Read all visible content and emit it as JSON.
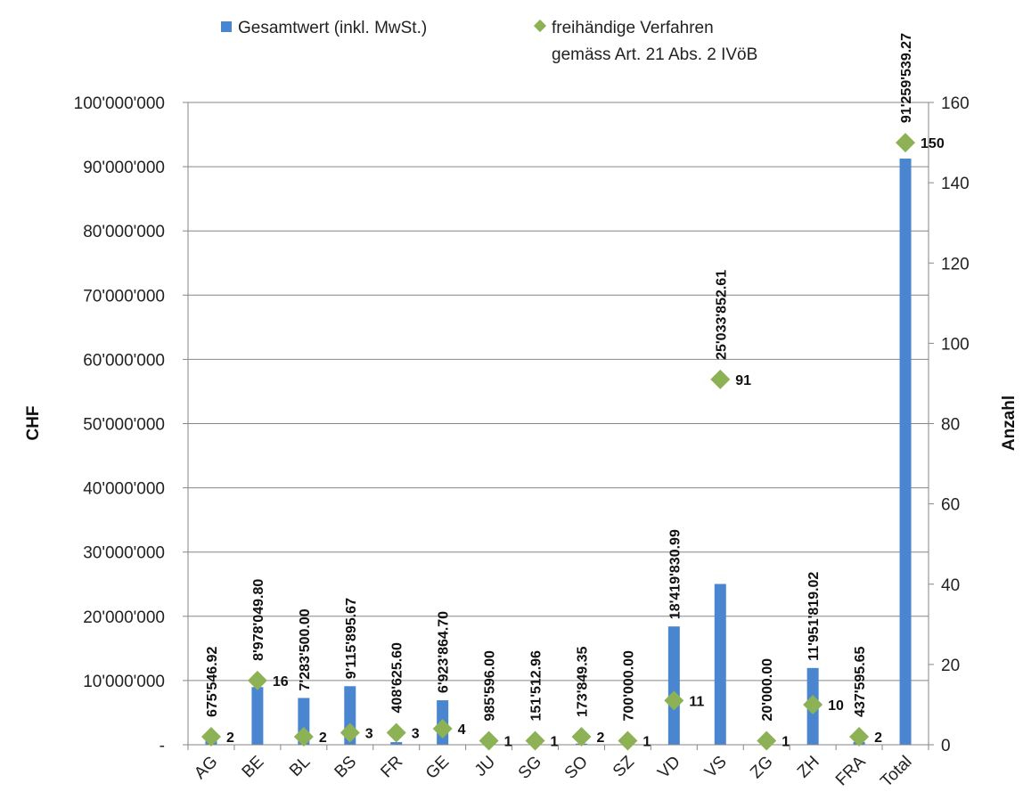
{
  "chart_data": {
    "type": "bar",
    "categories": [
      "AG",
      "BE",
      "BL",
      "BS",
      "FR",
      "GE",
      "JU",
      "SG",
      "SO",
      "SZ",
      "VD",
      "VS",
      "ZG",
      "ZH",
      "FRA",
      "Total"
    ],
    "series": [
      {
        "name": "Gesamtwert (inkl. MwSt.)",
        "type": "bar",
        "axis": "left",
        "color": "#4A86D0",
        "values": [
          675546.92,
          8978049.8,
          7283500.0,
          9115895.67,
          408625.6,
          6923864.7,
          985596.0,
          151512.96,
          173849.35,
          700000.0,
          18419830.99,
          25033852.61,
          20000.0,
          11951819.02,
          437595.65,
          91259539.27
        ],
        "labels": [
          "675'546.92",
          "8'978'049.80",
          "7'283'500.00",
          "9'115'895.67",
          "408'625.60",
          "6'923'864.70",
          "985'596.00",
          "151'512.96",
          "173'849.35",
          "700'000.00",
          "18'419'830.99",
          "25'033'852.61",
          "20'000.00",
          "11'951'819.02",
          "437'595.65",
          "91'259'539.27"
        ]
      },
      {
        "name": "freihändige Verfahren gemäss Art. 21 Abs. 2 IVöB",
        "name_lines": [
          "freihändige Verfahren",
          "gemäss Art. 21 Abs. 2 IVöB"
        ],
        "type": "scatter",
        "marker": "diamond",
        "axis": "right",
        "color": "#8DB255",
        "values": [
          2,
          16,
          2,
          3,
          3,
          4,
          1,
          1,
          2,
          1,
          11,
          91,
          1,
          10,
          2,
          150
        ]
      }
    ],
    "ylabel": "CHF",
    "y2label": "Anzahl",
    "ylim": [
      0,
      100000000
    ],
    "y2lim": [
      0,
      160
    ],
    "yticks": [
      "-",
      "10'000'000",
      "20'000'000",
      "30'000'000",
      "40'000'000",
      "50'000'000",
      "60'000'000",
      "70'000'000",
      "80'000'000",
      "90'000'000",
      "100'000'000"
    ],
    "y2ticks": [
      "0",
      "20",
      "40",
      "60",
      "80",
      "100",
      "120",
      "140",
      "160"
    ],
    "grid": true,
    "legend_position": "top"
  }
}
